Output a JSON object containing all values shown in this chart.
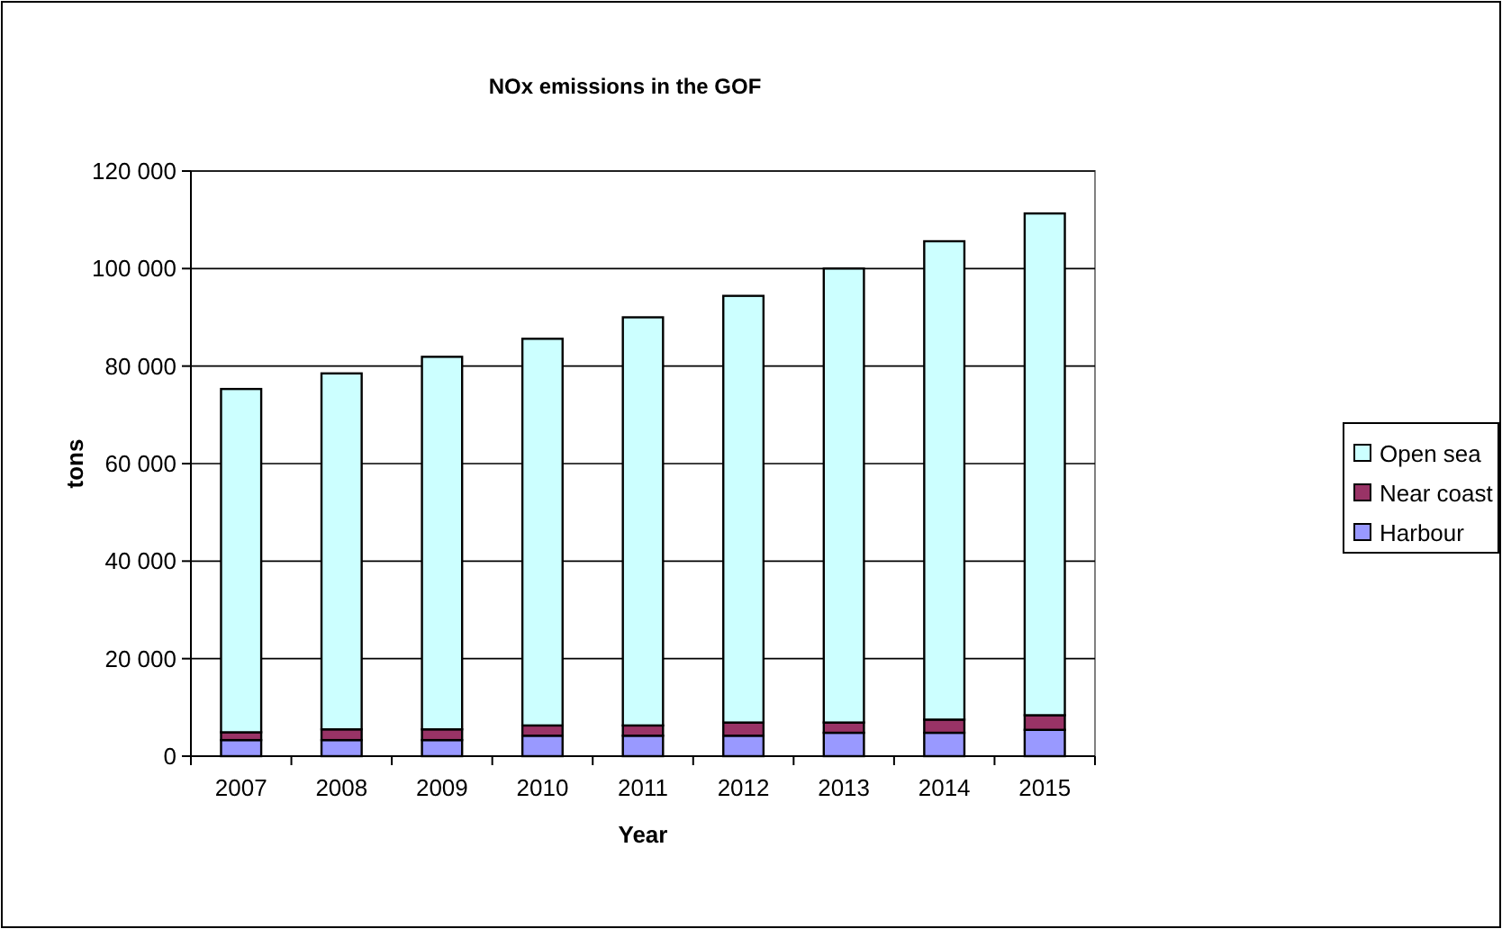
{
  "chart_data": {
    "type": "bar",
    "title": "NOx emissions in the GOF",
    "xlabel": "Year",
    "ylabel": "tons",
    "categories": [
      "2007",
      "2008",
      "2009",
      "2010",
      "2011",
      "2012",
      "2013",
      "2014",
      "2015"
    ],
    "stacked": true,
    "series": [
      {
        "name": "Harbour",
        "color": "#9999ff",
        "values": [
          3300,
          3300,
          3300,
          4200,
          4200,
          4200,
          4800,
          4800,
          5400
        ]
      },
      {
        "name": "Near coast",
        "color": "#993366",
        "values": [
          1600,
          2200,
          2200,
          2100,
          2100,
          2700,
          2100,
          2700,
          3000
        ]
      },
      {
        "name": "Open sea",
        "color": "#ccffff",
        "values": [
          70400,
          73000,
          76400,
          79300,
          83700,
          87500,
          93100,
          98100,
          102900
        ]
      }
    ],
    "ylim": [
      0,
      120000
    ],
    "yticks": [
      {
        "value": 0,
        "label": "0"
      },
      {
        "value": 20000,
        "label": "20 000"
      },
      {
        "value": 40000,
        "label": "40 000"
      },
      {
        "value": 60000,
        "label": "60 000"
      },
      {
        "value": 80000,
        "label": "80 000"
      },
      {
        "value": 100000,
        "label": "100 000"
      },
      {
        "value": 120000,
        "label": "120 000"
      }
    ],
    "grid": "y",
    "legend": "right"
  }
}
